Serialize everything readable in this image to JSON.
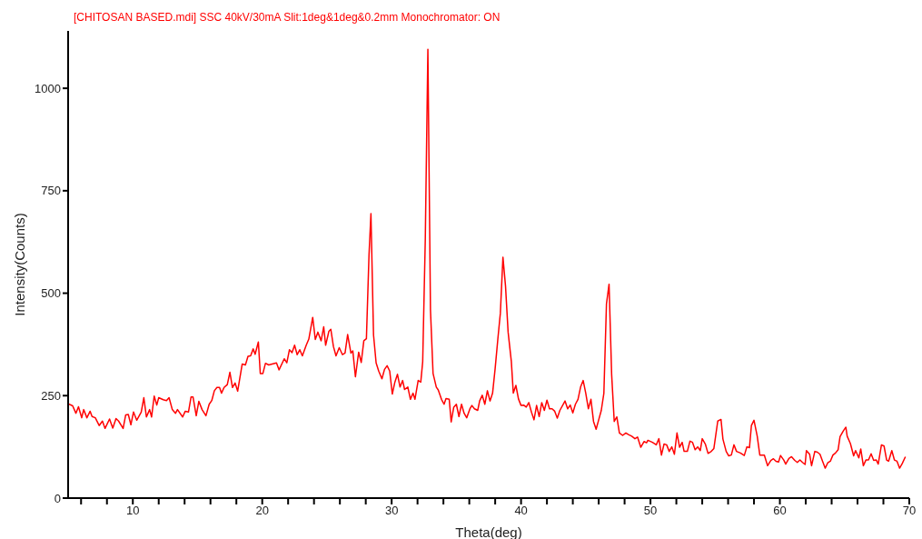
{
  "chart_data": {
    "type": "line",
    "title": "[CHITOSAN BASED.mdi] SSC 40kV/30mA Slit:1deg&1deg&0.2mm Monochromator: ON",
    "xlabel": "Theta(deg)",
    "ylabel": "Intensity(Counts)",
    "xlim": [
      5,
      70
    ],
    "ylim": [
      0,
      1140
    ],
    "xticks": [
      {
        "value": 6,
        "label": null
      },
      {
        "value": 8,
        "label": null
      },
      10,
      {
        "value": 12,
        "label": null
      },
      {
        "value": 14,
        "label": null
      },
      {
        "value": 16,
        "label": null
      },
      {
        "value": 18,
        "label": null
      },
      20,
      {
        "value": 22,
        "label": null
      },
      {
        "value": 24,
        "label": null
      },
      {
        "value": 26,
        "label": null
      },
      {
        "value": 28,
        "label": null
      },
      30,
      {
        "value": 32,
        "label": null
      },
      {
        "value": 34,
        "label": null
      },
      {
        "value": 36,
        "label": null
      },
      {
        "value": 38,
        "label": null
      },
      40,
      {
        "value": 42,
        "label": null
      },
      {
        "value": 44,
        "label": null
      },
      {
        "value": 46,
        "label": null
      },
      {
        "value": 48,
        "label": null
      },
      50,
      {
        "value": 52,
        "label": null
      },
      {
        "value": 54,
        "label": null
      },
      {
        "value": 56,
        "label": null
      },
      {
        "value": 58,
        "label": null
      },
      60,
      {
        "value": 62,
        "label": null
      },
      {
        "value": 64,
        "label": null
      },
      {
        "value": 66,
        "label": null
      },
      {
        "value": 68,
        "label": null
      },
      70
    ],
    "yticks": [
      0,
      250,
      500,
      750,
      1000
    ],
    "grid": false,
    "legend": false,
    "marker": "none",
    "line_style": "solid",
    "x": [
      5.0,
      5.35,
      5.6,
      5.8,
      6.05,
      6.2,
      6.45,
      6.7,
      6.85,
      7.1,
      7.4,
      7.65,
      7.85,
      8.2,
      8.45,
      8.7,
      8.9,
      9.25,
      9.45,
      9.65,
      9.85,
      10.05,
      10.3,
      10.65,
      10.85,
      11.05,
      11.3,
      11.45,
      11.65,
      11.85,
      12.0,
      12.35,
      12.6,
      12.8,
      13.05,
      13.3,
      13.45,
      13.85,
      14.05,
      14.3,
      14.5,
      14.65,
      14.9,
      15.1,
      15.35,
      15.65,
      15.9,
      16.1,
      16.3,
      16.5,
      16.7,
      16.85,
      17.05,
      17.3,
      17.5,
      17.7,
      17.9,
      18.1,
      18.45,
      18.7,
      18.9,
      19.1,
      19.3,
      19.45,
      19.7,
      19.85,
      20.05,
      20.25,
      20.5,
      21.1,
      21.3,
      21.7,
      21.9,
      22.1,
      22.3,
      22.5,
      22.7,
      22.9,
      23.1,
      23.4,
      23.6,
      23.9,
      24.1,
      24.3,
      24.55,
      24.75,
      24.9,
      25.15,
      25.3,
      25.5,
      25.7,
      25.95,
      26.2,
      26.4,
      26.6,
      26.85,
      27.0,
      27.2,
      27.45,
      27.65,
      27.85,
      28.05,
      28.25,
      28.4,
      28.6,
      28.8,
      29.0,
      29.25,
      29.45,
      29.65,
      29.85,
      30.05,
      30.25,
      30.45,
      30.65,
      30.85,
      31.0,
      31.25,
      31.45,
      31.65,
      31.8,
      32.05,
      32.25,
      32.4,
      32.6,
      32.8,
      33.0,
      33.2,
      33.45,
      33.6,
      33.85,
      34.05,
      34.2,
      34.45,
      34.6,
      34.8,
      35.0,
      35.2,
      35.4,
      35.6,
      35.8,
      36.05,
      36.2,
      36.4,
      36.65,
      36.8,
      37.0,
      37.2,
      37.4,
      37.6,
      37.8,
      38.0,
      38.2,
      38.4,
      38.6,
      38.8,
      39.0,
      39.25,
      39.4,
      39.6,
      39.8,
      40.0,
      40.2,
      40.4,
      40.6,
      40.8,
      41.0,
      41.2,
      41.4,
      41.6,
      41.8,
      42.0,
      42.2,
      42.4,
      42.6,
      42.8,
      43.0,
      43.4,
      43.6,
      43.8,
      44.0,
      44.2,
      44.4,
      44.6,
      44.8,
      45.0,
      45.2,
      45.4,
      45.6,
      45.8,
      46.0,
      46.2,
      46.4,
      46.6,
      46.8,
      47.0,
      47.2,
      47.4,
      47.6,
      47.85,
      48.1,
      48.3,
      48.55,
      48.8,
      49.0,
      49.25,
      49.5,
      49.7,
      49.8,
      50.15,
      50.45,
      50.65,
      50.85,
      51.05,
      51.25,
      51.45,
      51.65,
      51.85,
      52.05,
      52.25,
      52.45,
      52.6,
      52.85,
      53.05,
      53.25,
      53.45,
      53.65,
      53.85,
      54.0,
      54.25,
      54.45,
      54.7,
      54.9,
      55.2,
      55.45,
      55.6,
      55.85,
      56.05,
      56.25,
      56.45,
      56.65,
      56.95,
      57.25,
      57.45,
      57.65,
      57.8,
      58.0,
      58.25,
      58.45,
      58.8,
      59.05,
      59.3,
      59.5,
      59.7,
      59.9,
      60.05,
      60.3,
      60.45,
      60.7,
      60.9,
      61.15,
      61.35,
      61.55,
      61.75,
      61.95,
      62.05,
      62.3,
      62.45,
      62.7,
      62.9,
      63.1,
      63.3,
      63.5,
      63.7,
      63.9,
      64.1,
      64.3,
      64.5,
      64.65,
      64.9,
      65.1,
      65.2,
      65.45,
      65.7,
      65.85,
      66.1,
      66.25,
      66.45,
      66.65,
      66.85,
      67.05,
      67.25,
      67.45,
      67.6,
      67.85,
      68.05,
      68.25,
      68.4,
      68.65,
      68.85,
      69.05,
      69.25,
      69.45,
      69.7
    ],
    "series": [
      {
        "color": "#ff0000",
        "values": [
          230,
          225,
          207,
          223,
          196,
          216,
          196,
          212,
          199,
          196,
          177,
          188,
          170,
          193,
          171,
          194,
          188,
          170,
          203,
          204,
          179,
          210,
          190,
          210,
          245,
          198,
          216,
          198,
          249,
          227,
          245,
          240,
          238,
          245,
          216,
          207,
          216,
          198,
          212,
          210,
          247,
          247,
          201,
          236,
          216,
          201,
          229,
          238,
          262,
          270,
          270,
          256,
          270,
          277,
          307,
          270,
          281,
          261,
          327,
          325,
          346,
          347,
          364,
          351,
          381,
          304,
          304,
          329,
          325,
          330,
          313,
          340,
          330,
          362,
          355,
          373,
          350,
          362,
          347,
          373,
          388,
          441,
          387,
          405,
          384,
          418,
          373,
          407,
          412,
          370,
          347,
          367,
          350,
          354,
          399,
          354,
          359,
          296,
          356,
          331,
          384,
          389,
          593,
          694,
          398,
          330,
          310,
          291,
          314,
          323,
          310,
          254,
          283,
          302,
          271,
          287,
          265,
          271,
          241,
          256,
          241,
          287,
          283,
          333,
          632,
          1095,
          459,
          304,
          271,
          264,
          241,
          229,
          243,
          241,
          186,
          222,
          229,
          199,
          229,
          207,
          196,
          218,
          226,
          218,
          214,
          237,
          251,
          229,
          262,
          237,
          256,
          317,
          386,
          451,
          588,
          517,
          405,
          333,
          256,
          275,
          242,
          226,
          227,
          222,
          233,
          210,
          191,
          226,
          199,
          233,
          214,
          239,
          218,
          218,
          212,
          195,
          214,
          237,
          218,
          227,
          208,
          229,
          241,
          271,
          287,
          256,
          218,
          241,
          187,
          168,
          191,
          214,
          256,
          474,
          522,
          302,
          187,
          198,
          159,
          153,
          159,
          155,
          151,
          145,
          149,
          124,
          138,
          135,
          141,
          136,
          130,
          145,
          105,
          132,
          130,
          114,
          125,
          107,
          159,
          124,
          136,
          114,
          114,
          139,
          136,
          118,
          125,
          116,
          145,
          131,
          109,
          114,
          121,
          188,
          192,
          144,
          114,
          103,
          105,
          130,
          114,
          110,
          104,
          125,
          123,
          177,
          190,
          151,
          105,
          105,
          79,
          92,
          96,
          90,
          88,
          104,
          93,
          83,
          97,
          101,
          92,
          87,
          93,
          87,
          82,
          116,
          107,
          79,
          114,
          112,
          107,
          90,
          73,
          86,
          90,
          105,
          110,
          118,
          150,
          164,
          173,
          151,
          133,
          103,
          116,
          98,
          120,
          79,
          93,
          93,
          108,
          92,
          93,
          83,
          130,
          127,
          93,
          90,
          116,
          93,
          90,
          73,
          84,
          101
        ]
      }
    ]
  }
}
